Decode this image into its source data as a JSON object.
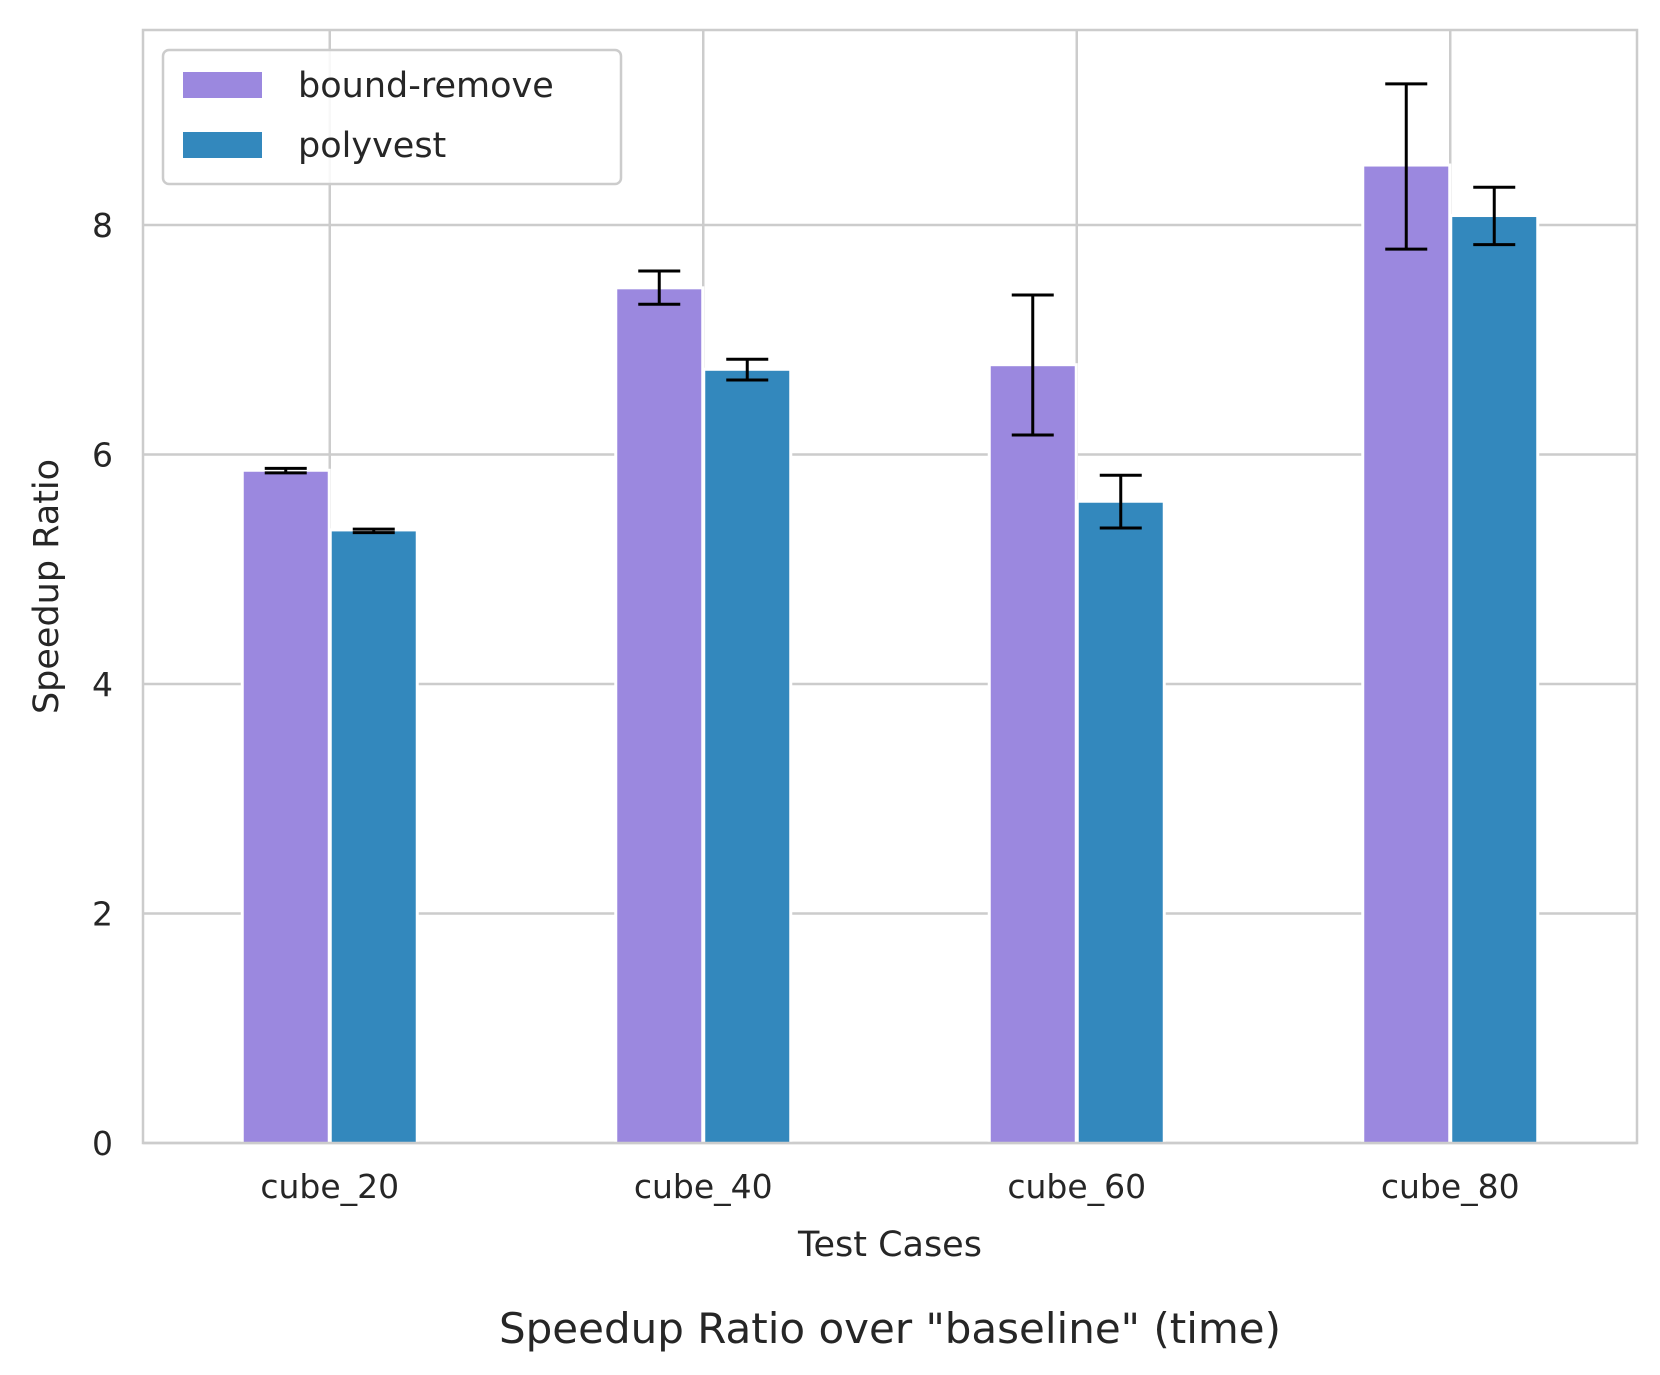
{
  "chart_data": {
    "type": "bar",
    "title": "Speedup Ratio over \"baseline\" (time)",
    "xlabel": "Test Cases",
    "ylabel": "Speedup Ratio",
    "categories": [
      "cube_20",
      "cube_40",
      "cube_60",
      "cube_80"
    ],
    "ylim": [
      0,
      9.7
    ],
    "yticks": [
      0,
      2,
      4,
      6,
      8
    ],
    "grid": true,
    "legend_position": "top-left",
    "series": [
      {
        "name": "bound-remove",
        "color": "#9b88df",
        "values": [
          5.85,
          7.44,
          6.77,
          8.51
        ],
        "error_low": [
          5.84,
          7.31,
          6.17,
          7.79
        ],
        "error_high": [
          5.88,
          7.6,
          7.39,
          9.23
        ]
      },
      {
        "name": "polyvest",
        "color": "#3388bd",
        "values": [
          5.33,
          6.73,
          5.58,
          8.07
        ],
        "error_low": [
          5.32,
          6.65,
          5.36,
          7.83
        ],
        "error_high": [
          5.35,
          6.83,
          5.82,
          8.33
        ]
      }
    ]
  }
}
